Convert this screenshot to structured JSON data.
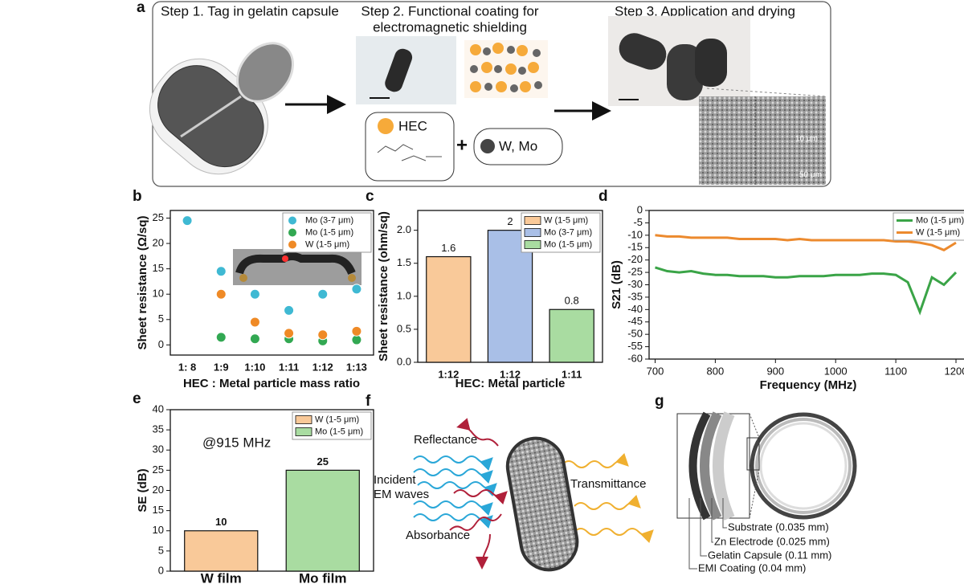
{
  "panel_a": {
    "label": "a",
    "step1": "Step 1. Tag in gelatin capsule",
    "step2_line1": "Step 2. Functional coating for",
    "step2_line2": "electromagnetic shielding",
    "step3": "Step 3. Application and drying",
    "hec": "HEC",
    "plus": "+",
    "metal": "W, Mo",
    "scale1": "10 μm",
    "scale2": "50 μm"
  },
  "panel_f": {
    "label": "f",
    "reflectance": "Reflectance",
    "incident_line1": "Incident",
    "incident_line2": "EM waves",
    "absorbance": "Absorbance",
    "transmittance": "Transmittance"
  },
  "panel_g": {
    "label": "g",
    "layers": [
      "Substrate (0.035 mm)",
      "Zn Electrode (0.025 mm)",
      "Gelatin Capsule (0.11 mm)",
      "EMI Coating (0.04 mm)"
    ]
  },
  "chart_data": [
    {
      "type": "scatter",
      "panel_label": "b",
      "y_label": "Sheet resistance (Ω/sq)",
      "x_label": "HEC : Metal particle mass ratio",
      "categories": [
        "1: 8",
        "1:9",
        "1:10",
        "1:11",
        "1:12",
        "1:13"
      ],
      "series": [
        {
          "name": "Mo (3-7 μm)",
          "color": "#3fb9d3",
          "values": [
            24.5,
            14.5,
            10,
            6.8,
            10,
            11
          ]
        },
        {
          "name": "Mo (1-5 μm)",
          "color": "#32a852",
          "values": [
            null,
            1.5,
            1.2,
            1.2,
            0.8,
            1.0
          ]
        },
        {
          "name": "W (1-5 μm)",
          "color": "#ef8a26",
          "values": [
            null,
            10,
            4.5,
            2.3,
            2,
            2.7
          ]
        }
      ],
      "ylim": [
        -2,
        26.5
      ],
      "yticks": [
        0,
        5,
        10,
        15,
        20,
        25
      ],
      "legend": "upper right"
    },
    {
      "type": "bar",
      "panel_label": "c",
      "y_label": "Sheet resistance (ohm/sq)",
      "x_label": "HEC: Metal particle",
      "categories": [
        "1:12",
        "1:12",
        "1:11"
      ],
      "series": [
        {
          "name": "W (1-5 μm)",
          "color": "#f9c999",
          "values": [
            1.6,
            null,
            null
          ]
        },
        {
          "name": "Mo (3-7 μm)",
          "color": "#a9bfe7",
          "values": [
            null,
            2,
            null
          ]
        },
        {
          "name": "Mo (1-5 μm)",
          "color": "#a9dca1",
          "values": [
            null,
            null,
            0.8
          ]
        }
      ],
      "ylim": [
        0,
        2.3
      ],
      "yticks": [
        {
          "value": 0,
          "label": "0.0"
        },
        0.5,
        {
          "value": 1,
          "label": "1.0"
        },
        1.5,
        {
          "value": 2,
          "label": "2.0"
        }
      ],
      "legend": "upper right"
    },
    {
      "type": "line",
      "panel_label": "d",
      "y_label": "S21 (dB)",
      "x_label": "Frequency (MHz)",
      "x": [
        700,
        720,
        740,
        760,
        780,
        800,
        820,
        840,
        860,
        880,
        900,
        920,
        940,
        960,
        980,
        1000,
        1020,
        1040,
        1060,
        1080,
        1100,
        1120,
        1140,
        1160,
        1180,
        1200
      ],
      "series": [
        {
          "name": "Mo (1-5 μm)",
          "color": "#3aa447",
          "values": [
            -23,
            -24.5,
            -25,
            -24.5,
            -25.5,
            -26,
            -26,
            -26.5,
            -26.5,
            -26.5,
            -27,
            -27,
            -26.5,
            -26.5,
            -26.5,
            -26,
            -26,
            -26,
            -25.5,
            -25.5,
            -26,
            -29,
            -41,
            -27,
            -30,
            -25
          ]
        },
        {
          "name": "W (1-5 μm)",
          "color": "#ec8a2e",
          "values": [
            -10,
            -10.5,
            -10.5,
            -11,
            -11,
            -11,
            -11,
            -11.5,
            -11.5,
            -11.5,
            -11.5,
            -12,
            -11.5,
            -12,
            -12,
            -12,
            -12,
            -12,
            -12,
            -12,
            -12.5,
            -12.5,
            -13,
            -14,
            -16,
            -13
          ]
        }
      ],
      "xlim": [
        690,
        1220
      ],
      "xticks": [
        700,
        800,
        900,
        1000,
        1100,
        1200
      ],
      "ylim": [
        -60,
        0
      ],
      "yticks": [
        0,
        -5,
        -10,
        -15,
        -20,
        -25,
        -30,
        -35,
        -40,
        -45,
        -50,
        -55,
        -60
      ],
      "legend": "upper right"
    },
    {
      "type": "bar",
      "panel_label": "e",
      "y_label": "SE (dB)",
      "annotation": "@915 MHz",
      "categories": [
        "W film",
        "Mo film"
      ],
      "series": [
        {
          "name": "W (1-5 μm)",
          "color": "#f9c999",
          "values": [
            10,
            null
          ]
        },
        {
          "name": "Mo (1-5 μm)",
          "color": "#a9dca1",
          "values": [
            null,
            25
          ]
        }
      ],
      "ylim": [
        0,
        40
      ],
      "yticks": [
        0,
        5,
        10,
        15,
        20,
        25,
        30,
        35,
        40
      ],
      "legend": "upper right"
    }
  ]
}
